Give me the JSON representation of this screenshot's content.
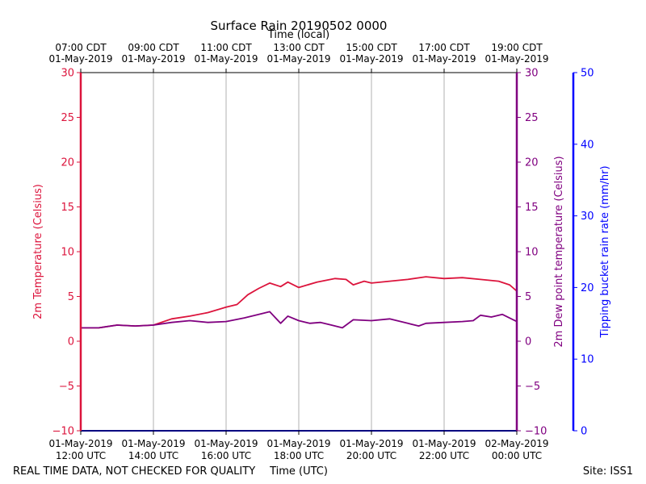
{
  "chart_data": {
    "type": "line",
    "title": "Surface Rain 20190502 0000",
    "top_axis_label": "Time (local)",
    "top_ticks": [
      {
        "l1": "07:00 CDT",
        "l2": "01-May-2019"
      },
      {
        "l1": "09:00 CDT",
        "l2": "01-May-2019"
      },
      {
        "l1": "11:00 CDT",
        "l2": "01-May-2019"
      },
      {
        "l1": "13:00 CDT",
        "l2": "01-May-2019"
      },
      {
        "l1": "15:00 CDT",
        "l2": "01-May-2019"
      },
      {
        "l1": "17:00 CDT",
        "l2": "01-May-2019"
      },
      {
        "l1": "19:00 CDT",
        "l2": "01-May-2019"
      }
    ],
    "bottom_axis_label": "Time (UTC)",
    "bottom_ticks": [
      {
        "l1": "01-May-2019",
        "l2": "12:00 UTC"
      },
      {
        "l1": "01-May-2019",
        "l2": "14:00 UTC"
      },
      {
        "l1": "01-May-2019",
        "l2": "16:00 UTC"
      },
      {
        "l1": "01-May-2019",
        "l2": "18:00 UTC"
      },
      {
        "l1": "01-May-2019",
        "l2": "20:00 UTC"
      },
      {
        "l1": "01-May-2019",
        "l2": "22:00 UTC"
      },
      {
        "l1": "02-May-2019",
        "l2": "00:00 UTC"
      }
    ],
    "x_hours_utc": [
      12,
      14,
      16,
      18,
      20,
      22,
      24
    ],
    "xlim_hours_utc": [
      12,
      24
    ],
    "grid_vertical": true,
    "left_axis": {
      "label": "2m Temperature (Celsius)",
      "ylim": [
        -10,
        30
      ],
      "ticks": [
        -10,
        -5,
        0,
        5,
        10,
        15,
        20,
        25,
        30
      ],
      "tick_labels": [
        "−10",
        "−5",
        "0",
        "5",
        "10",
        "15",
        "20",
        "25",
        "30"
      ],
      "color": "#dc143c"
    },
    "right_axis": {
      "label": "2m Dew point temperature (Celsius)",
      "ylim": [
        -10,
        30
      ],
      "ticks": [
        -10,
        -5,
        0,
        5,
        10,
        15,
        20,
        25,
        30
      ],
      "tick_labels": [
        "−10",
        "−5",
        "0",
        "5",
        "10",
        "15",
        "20",
        "25",
        "30"
      ],
      "color": "#800080"
    },
    "rain_axis": {
      "label": "Tipping bucket rain rate (mm/hr)",
      "ylim": [
        0,
        50
      ],
      "ticks": [
        0,
        10,
        20,
        30,
        40,
        50
      ],
      "tick_labels": [
        "0",
        "10",
        "20",
        "30",
        "40",
        "50"
      ],
      "color": "#0000ff"
    },
    "series": [
      {
        "color": "#dc143c",
        "axis": "left",
        "x": [
          12.0,
          12.5,
          13.0,
          13.5,
          14.0,
          14.5,
          15.0,
          15.5,
          16.0,
          16.3,
          16.6,
          16.9,
          17.2,
          17.5,
          17.7,
          18.0,
          18.5,
          19.0,
          19.3,
          19.5,
          19.8,
          20.0,
          20.5,
          21.0,
          21.5,
          22.0,
          22.5,
          23.0,
          23.5,
          23.8,
          24.0
        ],
        "y": [
          1.5,
          1.5,
          1.8,
          1.7,
          1.8,
          2.5,
          2.8,
          3.2,
          3.8,
          4.1,
          5.2,
          5.9,
          6.5,
          6.1,
          6.6,
          6.0,
          6.6,
          7.0,
          6.9,
          6.3,
          6.7,
          6.5,
          6.7,
          6.9,
          7.2,
          7.0,
          7.1,
          6.9,
          6.7,
          6.3,
          5.6
        ]
      },
      {
        "color": "#800080",
        "axis": "right",
        "x": [
          12.0,
          12.5,
          13.0,
          13.5,
          14.0,
          14.5,
          15.0,
          15.5,
          16.0,
          16.5,
          17.0,
          17.2,
          17.5,
          17.7,
          18.0,
          18.3,
          18.6,
          18.9,
          19.2,
          19.5,
          20.0,
          20.5,
          21.0,
          21.3,
          21.5,
          22.0,
          22.5,
          22.8,
          23.0,
          23.3,
          23.6,
          24.0
        ],
        "y": [
          1.5,
          1.5,
          1.8,
          1.7,
          1.8,
          2.1,
          2.3,
          2.1,
          2.2,
          2.6,
          3.1,
          3.3,
          2.0,
          2.8,
          2.3,
          2.0,
          2.1,
          1.8,
          1.5,
          2.4,
          2.3,
          2.5,
          2.0,
          1.7,
          2.0,
          2.1,
          2.2,
          2.3,
          2.9,
          2.7,
          3.0,
          2.2
        ]
      },
      {
        "color": "#0000ff",
        "axis": "rain",
        "x": [
          12.0,
          24.0
        ],
        "y": [
          0,
          0
        ]
      }
    ]
  },
  "footer": {
    "left_note": "REAL TIME DATA, NOT CHECKED FOR QUALITY",
    "site": "Site: ISS1"
  }
}
